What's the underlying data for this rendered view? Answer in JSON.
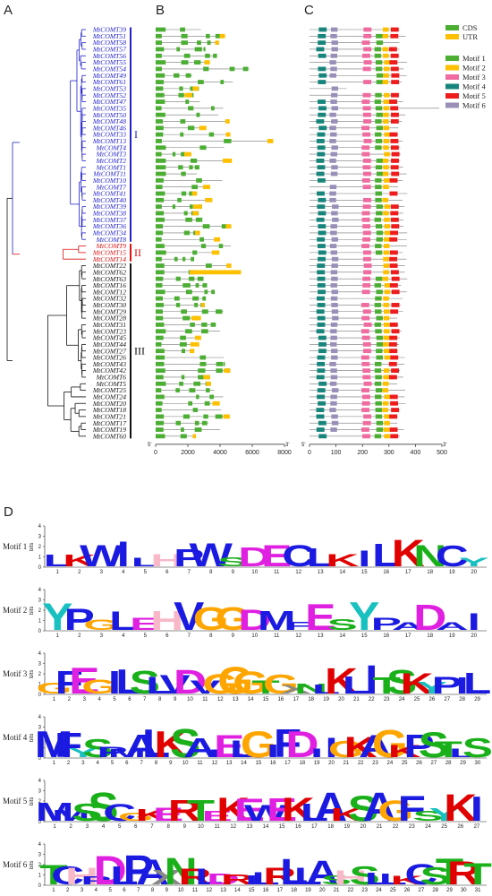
{
  "panels": {
    "a": "A",
    "b": "B",
    "c": "C",
    "d": "D"
  },
  "colors": {
    "clade1": "#2222cc",
    "clade2": "#dd1111",
    "clade3": "#111111",
    "cds": "#4caf33",
    "utr": "#ffc000",
    "motif1": "#4caf33",
    "motif2": "#ffc000",
    "motif3": "#f06ba0",
    "motif4": "#17857b",
    "motif5": "#ee1c1c",
    "motif6": "#9a8fb8"
  },
  "clades": [
    {
      "label": "I",
      "color": "clade1"
    },
    {
      "label": "II",
      "color": "clade2"
    },
    {
      "label": "III",
      "color": "clade3"
    }
  ],
  "genes": [
    {
      "name": "MtCOMT39",
      "clade": 1
    },
    {
      "name": "MtCOMT51",
      "clade": 1
    },
    {
      "name": "MtCOMT58",
      "clade": 1
    },
    {
      "name": "MtCOMT57",
      "clade": 1
    },
    {
      "name": "MtCOMT56",
      "clade": 1
    },
    {
      "name": "MtCOMT55",
      "clade": 1
    },
    {
      "name": "MtCOMT54",
      "clade": 1
    },
    {
      "name": "MtCOMT49",
      "clade": 1
    },
    {
      "name": "MtCOMT61",
      "clade": 1
    },
    {
      "name": "MtCOMT53",
      "clade": 1
    },
    {
      "name": "MtCOMT52",
      "clade": 1
    },
    {
      "name": "MtCOMT47",
      "clade": 1
    },
    {
      "name": "MtCOMT35",
      "clade": 1
    },
    {
      "name": "MtCOMT50",
      "clade": 1
    },
    {
      "name": "MtCOMT48",
      "clade": 1
    },
    {
      "name": "MtCOMT46",
      "clade": 1
    },
    {
      "name": "MtCOMT33",
      "clade": 1
    },
    {
      "name": "MtCOMT13",
      "clade": 1
    },
    {
      "name": "MtCOMT4",
      "clade": 1
    },
    {
      "name": "MtCOMT3",
      "clade": 1
    },
    {
      "name": "MtCOMT2",
      "clade": 1
    },
    {
      "name": "MtCOMT1",
      "clade": 1
    },
    {
      "name": "MtCOMT11",
      "clade": 1
    },
    {
      "name": "MtCOMT10",
      "clade": 1
    },
    {
      "name": "MtCOMT7",
      "clade": 1
    },
    {
      "name": "MtCOMT41",
      "clade": 1
    },
    {
      "name": "MtCOMT40",
      "clade": 1
    },
    {
      "name": "MtCOMT39",
      "clade": 1
    },
    {
      "name": "MtCOMT38",
      "clade": 1
    },
    {
      "name": "MtCOMT37",
      "clade": 1
    },
    {
      "name": "MtCOMT36",
      "clade": 1
    },
    {
      "name": "MtCOMT34",
      "clade": 1
    },
    {
      "name": "MtCOMT8",
      "clade": 1
    },
    {
      "name": "MtCOMT9",
      "clade": 2
    },
    {
      "name": "MtCOMT15",
      "clade": 2
    },
    {
      "name": "MtCOMT14",
      "clade": 2
    },
    {
      "name": "MtCOMT22",
      "clade": 3
    },
    {
      "name": "MtCOMT62",
      "clade": 3
    },
    {
      "name": "MtCOMT63",
      "clade": 3
    },
    {
      "name": "MtCOMT16",
      "clade": 3
    },
    {
      "name": "MtCOMT12",
      "clade": 3
    },
    {
      "name": "MtCOMT32",
      "clade": 3
    },
    {
      "name": "MtCOMT30",
      "clade": 3
    },
    {
      "name": "MtCOMT29",
      "clade": 3
    },
    {
      "name": "MtCOMT28",
      "clade": 3
    },
    {
      "name": "MtCOMT31",
      "clade": 3
    },
    {
      "name": "MtCOMT23",
      "clade": 3
    },
    {
      "name": "MtCOMT45",
      "clade": 3
    },
    {
      "name": "MtCOMT44",
      "clade": 3
    },
    {
      "name": "MtCOMT27",
      "clade": 3
    },
    {
      "name": "MtCOMT26",
      "clade": 3
    },
    {
      "name": "MtCOMT43",
      "clade": 3
    },
    {
      "name": "MtCOMT42",
      "clade": 3
    },
    {
      "name": "MtCOMT6",
      "clade": 3
    },
    {
      "name": "MtCOMT5",
      "clade": 3
    },
    {
      "name": "MtCOMT25",
      "clade": 3
    },
    {
      "name": "MtCOMT24",
      "clade": 3
    },
    {
      "name": "MtCOMT20",
      "clade": 3
    },
    {
      "name": "MtCOMT18",
      "clade": 3
    },
    {
      "name": "MtCOMT21",
      "clade": 3
    },
    {
      "name": "MtCOMT17",
      "clade": 3
    },
    {
      "name": "MtCOMT19",
      "clade": 3
    },
    {
      "name": "MtCOMT60",
      "clade": 3
    }
  ],
  "gene_structure": {
    "legend": [
      {
        "label": "CDS",
        "color": "cds"
      },
      {
        "label": "UTR",
        "color": "utr"
      }
    ],
    "axis": {
      "ticks": [
        "0",
        "2000",
        "4000",
        "6000",
        "8000"
      ],
      "max": 8000,
      "start_label": "5'",
      "end_label": "3'"
    }
  },
  "motif_structure": {
    "legend": [
      {
        "label": "Motif 1",
        "color": "motif1"
      },
      {
        "label": "Motif 2",
        "color": "motif2"
      },
      {
        "label": "Motif 3",
        "color": "motif3"
      },
      {
        "label": "Motif 4",
        "color": "motif4"
      },
      {
        "label": "Motif 5",
        "color": "motif5"
      },
      {
        "label": "Motif 6",
        "color": "motif6"
      }
    ],
    "axis": {
      "ticks": [
        "0",
        "100",
        "200",
        "300",
        "400",
        "500"
      ],
      "max": 500,
      "start_label": "5'",
      "end_label": "3'"
    }
  },
  "logos": [
    {
      "label": "Motif 1",
      "ylabel": "bits",
      "yticks": [
        "0",
        "1",
        "2",
        "3",
        "4"
      ],
      "sequence": "LKWILHPWSDECLKILKNCY"
    },
    {
      "label": "Motif 2",
      "ylabel": "bits",
      "yticks": [
        "0",
        "1",
        "2",
        "3",
        "4"
      ],
      "sequence": "YPGLEHVGGDMFESYPADAI"
    },
    {
      "label": "Motif 3",
      "ylabel": "bits",
      "yticks": [
        "0",
        "1",
        "2",
        "3",
        "4"
      ],
      "sequence": "GFEGILSLVDVGGGTGXNLKLITSKYPIL"
    },
    {
      "label": "Motif 4",
      "ylabel": "bits",
      "yticks": [
        "0",
        "1",
        "2",
        "3",
        "4"
      ],
      "sequence": "MFYSPMALKSAIELGIFDIIGKAGKPSTLS"
    },
    {
      "label": "Motif 5",
      "ylabel": "bits",
      "yticks": [
        "0",
        "1",
        "2",
        "3",
        "4"
      ],
      "sequence": "MMSSCGKERTEKEWEKLAKSAGFSYKI"
    },
    {
      "label": "Motif 6",
      "ylabel": "bits",
      "yticks": [
        "0",
        "1",
        "2",
        "3",
        "4"
      ],
      "sequence": "TCHPDLPAXNRLDRILRLLASHSLLKCSTRT"
    }
  ]
}
